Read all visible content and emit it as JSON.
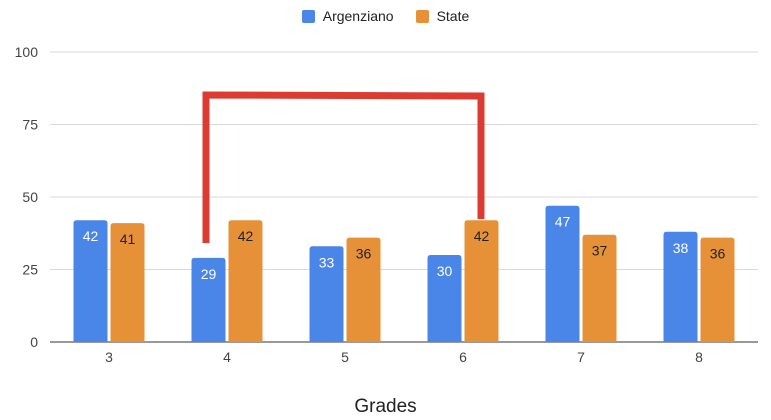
{
  "chart_data": {
    "type": "bar",
    "categories": [
      "3",
      "4",
      "5",
      "6",
      "7",
      "8"
    ],
    "series": [
      {
        "name": "Argenziano",
        "values": [
          42,
          29,
          33,
          30,
          47,
          38
        ],
        "color": "#4a86e8",
        "label_color": "#ffffff"
      },
      {
        "name": "State",
        "values": [
          41,
          42,
          36,
          42,
          37,
          36
        ],
        "color": "#e69138",
        "label_color": "#222222"
      }
    ],
    "xlabel": "Grades",
    "ylabel": "",
    "ylim": [
      0,
      100
    ],
    "yticks": [
      0,
      25,
      50,
      75,
      100
    ],
    "grid": true,
    "legend_position": "top",
    "annotation": {
      "shape": "bracket",
      "color": "#dc3b31",
      "from_category": "4",
      "to_category": "6"
    }
  }
}
